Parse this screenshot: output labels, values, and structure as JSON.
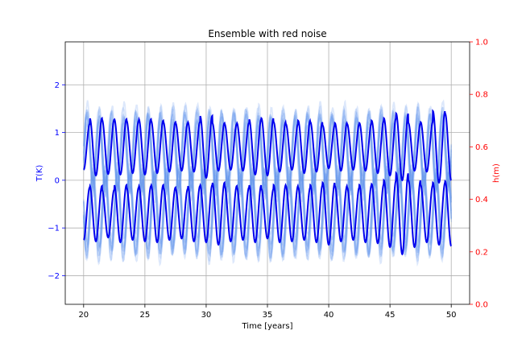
{
  "chart_data": {
    "type": "line",
    "title": "Ensemble with red noise",
    "xlabel": "Time [years]",
    "ylabel_left": "T(K)",
    "ylabel_right": "h(m)",
    "xlim": [
      18.5,
      51.5
    ],
    "ylim_left": [
      -2.6,
      2.9
    ],
    "ylim_right": [
      0.0,
      1.0
    ],
    "x_ticks": [
      20,
      25,
      30,
      35,
      40,
      45,
      50
    ],
    "x_tick_labels": [
      "20",
      "25",
      "30",
      "35",
      "40",
      "45",
      "50"
    ],
    "y_left_ticks": [
      -2,
      -1,
      0,
      1,
      2
    ],
    "y_left_tick_labels": [
      "−2",
      "−1",
      "0",
      "1",
      "2"
    ],
    "y_right_ticks": [
      0.0,
      0.2,
      0.4,
      0.6,
      0.8,
      1.0
    ],
    "y_right_tick_labels": [
      "0.0",
      "0.2",
      "0.4",
      "0.6",
      "0.8",
      "1.0"
    ],
    "grid": true,
    "legend": "none",
    "ensemble": {
      "members": 20,
      "x_range": [
        20,
        50
      ],
      "color": "#6495ed",
      "opacity": 0.22,
      "period_years": 1.0,
      "upper_center": 0.62,
      "upper_amplitude": 0.7,
      "lower_center": -0.68,
      "lower_amplitude": 0.6
    },
    "series": [
      {
        "color": "#0000ee",
        "x_range": [
          20,
          50
        ],
        "period_years": 1.0,
        "center": 0.7,
        "amplitude": 0.55,
        "peak_values": [
          1.18,
          1.3,
          1.27,
          1.28,
          1.25,
          1.28,
          1.25,
          1.22,
          1.2,
          1.22,
          1.35,
          1.2,
          1.18,
          1.2,
          1.28,
          1.3,
          1.22,
          1.18,
          1.25,
          1.22,
          1.15,
          1.2,
          1.18,
          1.2,
          1.25,
          1.3,
          1.4,
          1.2,
          1.22,
          1.45,
          1.4
        ]
      },
      {
        "color": "#0000ee",
        "x_range": [
          20,
          50
        ],
        "period_years": 1.0,
        "center": -0.7,
        "amplitude": 0.55,
        "trough_values": [
          -1.25,
          -1.28,
          -1.2,
          -1.3,
          -1.25,
          -1.28,
          -1.3,
          -1.25,
          -1.22,
          -1.28,
          -1.3,
          -1.35,
          -1.28,
          -1.25,
          -1.3,
          -1.22,
          -1.3,
          -1.28,
          -1.25,
          -1.3,
          -1.35,
          -1.28,
          -1.25,
          -1.3,
          -1.32,
          -1.4,
          -1.55,
          -1.4,
          -1.3,
          -1.35,
          -1.38
        ]
      }
    ],
    "colors": {
      "left_axis": "#0000ff",
      "right_axis": "#ff0000",
      "grid": "#b0b0b0",
      "frame": "#000000"
    }
  }
}
